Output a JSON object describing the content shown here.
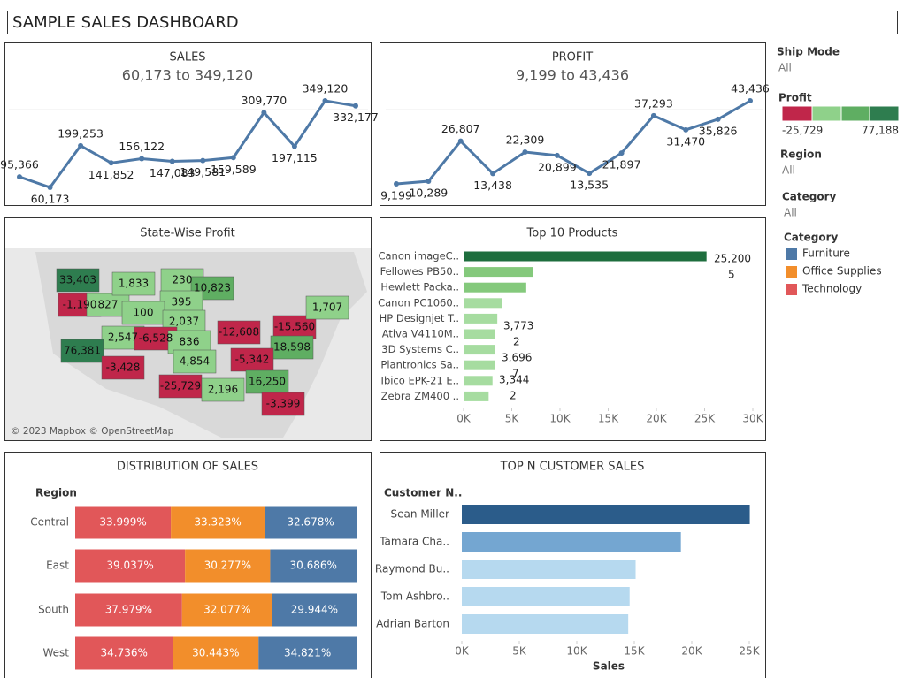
{
  "title": "SAMPLE SALES DASHBOARD",
  "chart_data": [
    {
      "type": "line",
      "title": "SALES",
      "subtitle": "60,173 to 349,120",
      "values": [
        95366,
        60173,
        199253,
        141852,
        156122,
        147083,
        149581,
        159589,
        309770,
        197115,
        349120,
        332177
      ],
      "value_labels": [
        "95,366",
        "60,173",
        "199,253",
        "141,852",
        "156,122",
        "147,083",
        "149,581",
        "159,589",
        "309,770",
        "197,115",
        "349,120",
        "332,177"
      ],
      "color": "#4e79a7"
    },
    {
      "type": "line",
      "title": "PROFIT",
      "subtitle": "9,199 to 43,436",
      "values": [
        9199,
        10289,
        26807,
        13438,
        22309,
        20899,
        13535,
        21897,
        37293,
        31470,
        35826,
        43436
      ],
      "value_labels": [
        "9,199",
        "10,289",
        "26,807",
        "13,438",
        "22,309",
        "20,899",
        "13,535",
        "21,897",
        "37,293",
        "31,470",
        "35,826",
        "43,436"
      ],
      "color": "#4e79a7"
    },
    {
      "type": "map",
      "title": "State-Wise Profit",
      "values": [
        33403,
        -1190,
        827,
        1833,
        230,
        10823,
        395,
        100,
        2037,
        2547,
        -6528,
        836,
        76381,
        -3428,
        4854,
        -12608,
        -15560,
        1707,
        18598,
        -5342,
        -25729,
        2196,
        16250,
        -3399
      ],
      "value_labels": [
        "33,403",
        "-1,190",
        "827",
        "1,833",
        "230",
        "10,823",
        "395",
        "100",
        "2,037",
        "2,547",
        "-6,528",
        "836",
        "76,381",
        "-3,428",
        "4,854",
        "-12,608",
        "-15,560",
        "1,707",
        "18,598",
        "-5,342",
        "-25,729",
        "2,196",
        "16,250",
        "-3,399"
      ],
      "attribution": "© 2023 Mapbox © OpenStreetMap",
      "colorscale": {
        "title": "Profit",
        "colors": [
          "#c0264a",
          "#8fd18a",
          "#5fae62",
          "#2e7d4f"
        ],
        "range": [
          {
            "value": -25729,
            "label": "-25,729"
          },
          {
            "value": 77188,
            "label": "77,188"
          }
        ]
      }
    },
    {
      "type": "hbar",
      "title": "Top 10 Products",
      "categories": [
        "Canon imageC..",
        "Fellowes PB50..",
        "Hewlett Packa..",
        "Canon PC1060..",
        "HP Designjet T..",
        "Ativa V4110M..",
        "3D Systems C..",
        "Plantronics Sa..",
        "Ibico EPK-21 E..",
        "Zebra ZM400 .."
      ],
      "values": [
        25200,
        7200,
        6500,
        4000,
        3500,
        3300,
        3300,
        3300,
        3000,
        2600
      ],
      "colors": [
        "#1e6e3e",
        "#84c97c",
        "#84c97c",
        "#a6dca0",
        "#a6dca0",
        "#a6dca0",
        "#a6dca0",
        "#a6dca0",
        "#a6dca0",
        "#a6dca0"
      ],
      "annotations": [
        "25,200",
        "5",
        "3,773",
        "2",
        "3,696",
        "7",
        "3,344",
        "2"
      ],
      "xlim": [
        0,
        30000
      ],
      "xticks": [
        {
          "value": 0,
          "label": "0K"
        },
        {
          "value": 5000,
          "label": "5K"
        },
        {
          "value": 10000,
          "label": "10K"
        },
        {
          "value": 15000,
          "label": "15K"
        },
        {
          "value": 20000,
          "label": "20K"
        },
        {
          "value": 25000,
          "label": "25K"
        },
        {
          "value": 30000,
          "label": "30K"
        }
      ]
    },
    {
      "type": "stacked_hbar",
      "title": "DISTRIBUTION OF SALES",
      "y_label": "Region",
      "legend_title": "Category",
      "categories": [
        "Central",
        "East",
        "South",
        "West"
      ],
      "series": [
        {
          "name": "Technology",
          "color": "#e15759",
          "values": [
            33.999,
            39.037,
            37.979,
            34.736
          ],
          "value_labels": [
            "33.999%",
            "39.037%",
            "37.979%",
            "34.736%"
          ]
        },
        {
          "name": "Office Supplies",
          "color": "#f28e2b",
          "values": [
            33.323,
            30.277,
            32.077,
            30.443
          ],
          "value_labels": [
            "33.323%",
            "30.277%",
            "32.077%",
            "30.443%"
          ]
        },
        {
          "name": "Furniture",
          "color": "#4e79a7",
          "values": [
            32.678,
            30.686,
            29.944,
            34.821
          ],
          "value_labels": [
            "32.678%",
            "30.686%",
            "29.944%",
            "34.821%"
          ]
        }
      ]
    },
    {
      "type": "hbar",
      "title": "TOP N CUSTOMER SALES",
      "y_label": "Customer N..",
      "x_label": "Sales",
      "categories": [
        "Sean Miller",
        "Tamara Cha..",
        "Raymond Bu..",
        "Tom Ashbro..",
        "Adrian Barton"
      ],
      "values": [
        25043,
        19052,
        15117,
        14595,
        14474
      ],
      "colors": [
        "#2b5c8a",
        "#74a6d1",
        "#b6d9ef",
        "#b6d9ef",
        "#b6d9ef"
      ],
      "xlim": [
        0,
        25000
      ],
      "xticks": [
        {
          "value": 0,
          "label": "0K"
        },
        {
          "value": 5000,
          "label": "5K"
        },
        {
          "value": 10000,
          "label": "10K"
        },
        {
          "value": 15000,
          "label": "15K"
        },
        {
          "value": 20000,
          "label": "20K"
        },
        {
          "value": 25000,
          "label": "25K"
        }
      ]
    }
  ],
  "filters": [
    {
      "label": "Ship Mode",
      "value": "All"
    },
    {
      "label": "Region",
      "value": "All"
    },
    {
      "label": "Category",
      "value": "All"
    }
  ]
}
